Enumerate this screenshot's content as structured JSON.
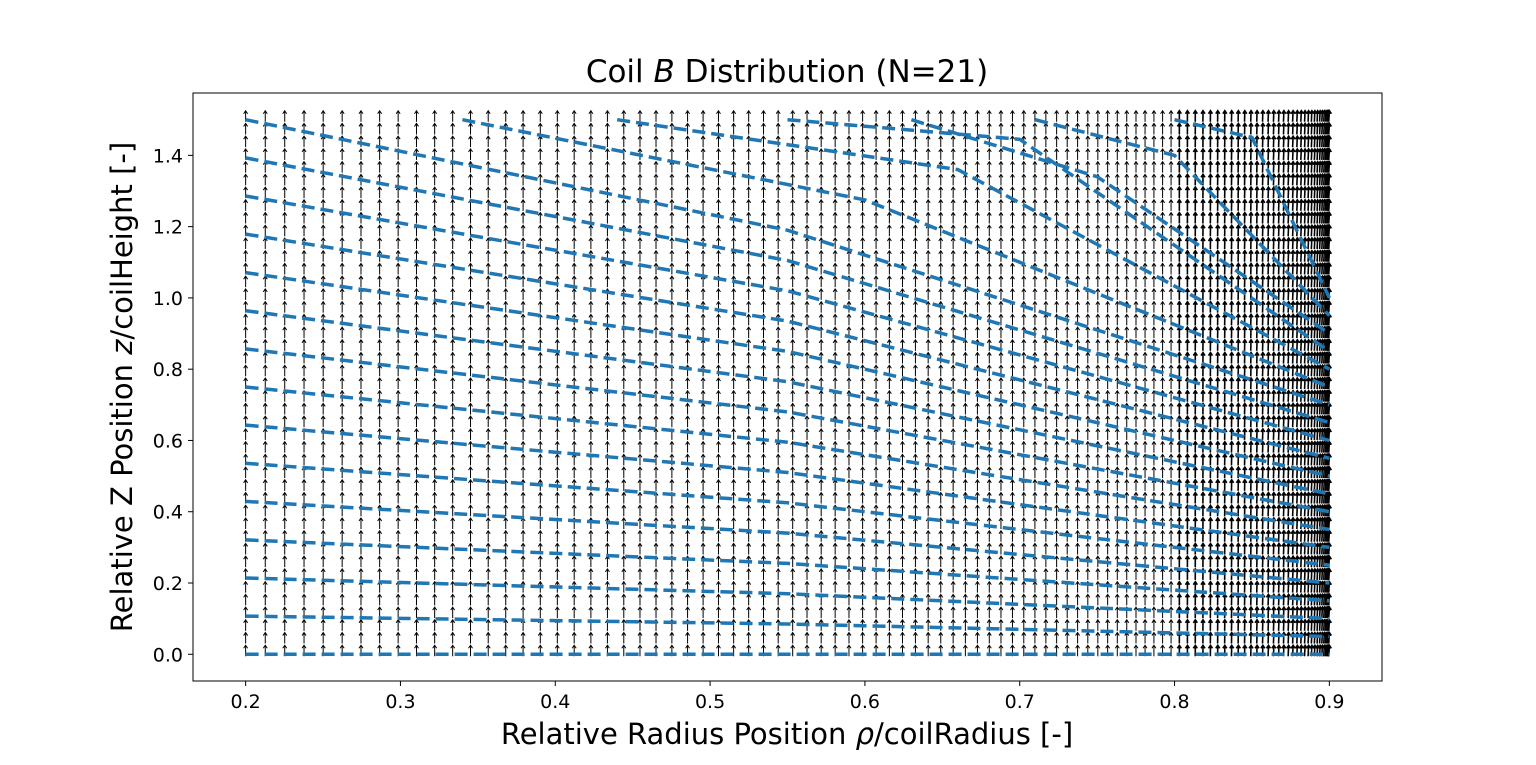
{
  "chart_data": {
    "type": "line",
    "title_parts": [
      "Coil ",
      "B",
      " Distribution (N=21)"
    ],
    "xlabel_parts": [
      "Relative Radius Position ",
      "ρ",
      "/coilRadius [-]"
    ],
    "ylabel_parts": [
      "Relative Z Position ",
      "z",
      "/coilHeight [-]"
    ],
    "xlim": [
      0.166,
      0.934
    ],
    "ylim": [
      -0.075,
      1.575
    ],
    "xticks": [
      0.2,
      0.3,
      0.4,
      0.5,
      0.6,
      0.7,
      0.8,
      0.9
    ],
    "xtick_labels": [
      "0.2",
      "0.3",
      "0.4",
      "0.5",
      "0.6",
      "0.7",
      "0.8",
      "0.9"
    ],
    "yticks": [
      0.0,
      0.2,
      0.4,
      0.6,
      0.8,
      1.0,
      1.2,
      1.4
    ],
    "ytick_labels": [
      "0.0",
      "0.2",
      "0.4",
      "0.6",
      "0.8",
      "1.0",
      "1.2",
      "1.4"
    ],
    "grid": false,
    "series_style": {
      "color": "#1f77b4",
      "linestyle": "dashed"
    },
    "series": [
      {
        "x": [
          0.2,
          0.55,
          0.9
        ],
        "y": [
          0.0,
          0.0,
          0.0
        ]
      },
      {
        "x": [
          0.2,
          0.55,
          0.9
        ],
        "y": [
          0.107,
          0.085,
          0.05
        ]
      },
      {
        "x": [
          0.2,
          0.55,
          0.9
        ],
        "y": [
          0.214,
          0.17,
          0.1
        ]
      },
      {
        "x": [
          0.2,
          0.55,
          0.9
        ],
        "y": [
          0.321,
          0.255,
          0.15
        ]
      },
      {
        "x": [
          0.2,
          0.55,
          0.9
        ],
        "y": [
          0.429,
          0.34,
          0.2
        ]
      },
      {
        "x": [
          0.2,
          0.55,
          0.9
        ],
        "y": [
          0.536,
          0.425,
          0.25
        ]
      },
      {
        "x": [
          0.2,
          0.55,
          0.9
        ],
        "y": [
          0.643,
          0.51,
          0.3
        ]
      },
      {
        "x": [
          0.2,
          0.55,
          0.9
        ],
        "y": [
          0.75,
          0.595,
          0.35
        ]
      },
      {
        "x": [
          0.2,
          0.55,
          0.9
        ],
        "y": [
          0.857,
          0.68,
          0.4
        ]
      },
      {
        "x": [
          0.2,
          0.55,
          0.9
        ],
        "y": [
          0.964,
          0.765,
          0.45
        ]
      },
      {
        "x": [
          0.2,
          0.55,
          0.9
        ],
        "y": [
          1.071,
          0.85,
          0.5
        ]
      },
      {
        "x": [
          0.2,
          0.55,
          0.9
        ],
        "y": [
          1.179,
          0.935,
          0.55
        ]
      },
      {
        "x": [
          0.2,
          0.55,
          0.9
        ],
        "y": [
          1.286,
          1.02,
          0.6
        ]
      },
      {
        "x": [
          0.2,
          0.55,
          0.9
        ],
        "y": [
          1.393,
          1.105,
          0.65
        ]
      },
      {
        "x": [
          0.2,
          0.55,
          0.9
        ],
        "y": [
          1.5,
          1.19,
          0.7
        ]
      },
      {
        "x": [
          0.34,
          0.6,
          0.9
        ],
        "y": [
          1.5,
          1.275,
          0.75
        ]
      },
      {
        "x": [
          0.44,
          0.66,
          0.9
        ],
        "y": [
          1.5,
          1.36,
          0.8
        ]
      },
      {
        "x": [
          0.55,
          0.7,
          0.9
        ],
        "y": [
          1.5,
          1.445,
          0.85
        ]
      },
      {
        "x": [
          0.63,
          0.75,
          0.9
        ],
        "y": [
          1.5,
          1.34,
          0.9
        ]
      },
      {
        "x": [
          0.71,
          0.8,
          0.9
        ],
        "y": [
          1.5,
          1.4,
          0.95
        ]
      },
      {
        "x": [
          0.8,
          0.85,
          0.9
        ],
        "y": [
          1.5,
          1.45,
          1.0
        ]
      }
    ],
    "quiver": {
      "color": "#000000",
      "x_range": [
        0.2,
        0.9
      ],
      "y_range": [
        0.0,
        1.5
      ],
      "x_spacing": "compressed-toward-right",
      "direction": "upward"
    }
  }
}
